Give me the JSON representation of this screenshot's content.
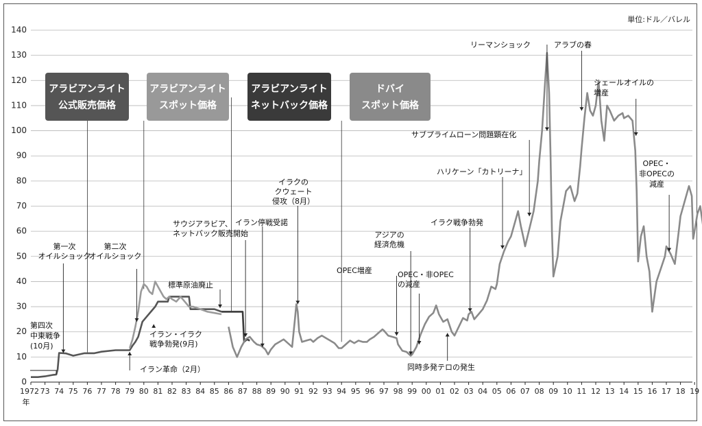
{
  "chart_data": {
    "type": "line",
    "unit_label": "単位:ドル／バレル",
    "year_unit": "年",
    "ylim": [
      0,
      140
    ],
    "yticks": [
      0,
      10,
      20,
      30,
      40,
      50,
      60,
      70,
      80,
      90,
      100,
      110,
      120,
      130,
      140
    ],
    "xlim": [
      1972,
      2019.6
    ],
    "xticks": [
      {
        "year": 1972,
        "label": "1972"
      },
      {
        "year": 1973,
        "label": "73"
      },
      {
        "year": 1974,
        "label": "74"
      },
      {
        "year": 1975,
        "label": "75"
      },
      {
        "year": 1976,
        "label": "76"
      },
      {
        "year": 1977,
        "label": "77"
      },
      {
        "year": 1978,
        "label": "78"
      },
      {
        "year": 1979,
        "label": "79"
      },
      {
        "year": 1980,
        "label": "80"
      },
      {
        "year": 1981,
        "label": "81"
      },
      {
        "year": 1982,
        "label": "82"
      },
      {
        "year": 1983,
        "label": "83"
      },
      {
        "year": 1984,
        "label": "84"
      },
      {
        "year": 1985,
        "label": "85"
      },
      {
        "year": 1986,
        "label": "86"
      },
      {
        "year": 1987,
        "label": "87"
      },
      {
        "year": 1988,
        "label": "88"
      },
      {
        "year": 1989,
        "label": "89"
      },
      {
        "year": 1990,
        "label": "90"
      },
      {
        "year": 1991,
        "label": "91"
      },
      {
        "year": 1992,
        "label": "92"
      },
      {
        "year": 1993,
        "label": "93"
      },
      {
        "year": 1994,
        "label": "94"
      },
      {
        "year": 1995,
        "label": "95"
      },
      {
        "year": 1996,
        "label": "96"
      },
      {
        "year": 1997,
        "label": "97"
      },
      {
        "year": 1998,
        "label": "98"
      },
      {
        "year": 1999,
        "label": "99"
      },
      {
        "year": 2000,
        "label": "00"
      },
      {
        "year": 2001,
        "label": "01"
      },
      {
        "year": 2002,
        "label": "02"
      },
      {
        "year": 2003,
        "label": "03"
      },
      {
        "year": 2004,
        "label": "04"
      },
      {
        "year": 2005,
        "label": "05"
      },
      {
        "year": 2006,
        "label": "06"
      },
      {
        "year": 2007,
        "label": "07"
      },
      {
        "year": 2008,
        "label": "08"
      },
      {
        "year": 2009,
        "label": "09"
      },
      {
        "year": 2010,
        "label": "10"
      },
      {
        "year": 2011,
        "label": "11"
      },
      {
        "year": 2012,
        "label": "12"
      },
      {
        "year": 2013,
        "label": "13"
      },
      {
        "year": 2014,
        "label": "14"
      },
      {
        "year": 2015,
        "label": "15"
      },
      {
        "year": 2016,
        "label": "16"
      },
      {
        "year": 2017,
        "label": "17"
      },
      {
        "year": 2018,
        "label": "18"
      },
      {
        "year": 2019,
        "label": "19"
      }
    ],
    "legend_boxes": [
      {
        "lines": [
          "アラビアンライト",
          "公式販売価格"
        ],
        "color": "#555555"
      },
      {
        "lines": [
          "アラビアンライト",
          "スポット価格"
        ],
        "color": "#999999"
      },
      {
        "lines": [
          "アラビアンライト",
          "ネットバック価格"
        ],
        "color": "#3a3a3a"
      },
      {
        "lines": [
          "ドバイ",
          "スポット価格"
        ],
        "color": "#8a8a8a"
      }
    ],
    "series": [
      {
        "color": "#555555",
        "width": 2.6,
        "points": [
          [
            1972.0,
            2.0
          ],
          [
            1972.5,
            2.0
          ],
          [
            1973.0,
            2.3
          ],
          [
            1973.6,
            2.9
          ],
          [
            1973.8,
            3.0
          ],
          [
            1973.9,
            5.1
          ],
          [
            1974.0,
            11.6
          ],
          [
            1974.5,
            11.4
          ],
          [
            1975.0,
            10.5
          ],
          [
            1975.8,
            11.5
          ],
          [
            1976.5,
            11.5
          ],
          [
            1977.0,
            12.1
          ],
          [
            1978.0,
            12.7
          ],
          [
            1979.0,
            12.7
          ],
          [
            1979.2,
            14.5
          ],
          [
            1979.4,
            16.0
          ],
          [
            1979.6,
            18.0
          ],
          [
            1979.9,
            24.0
          ],
          [
            1980.2,
            26.0
          ],
          [
            1980.5,
            28.0
          ],
          [
            1980.8,
            30.0
          ],
          [
            1981.0,
            32.0
          ],
          [
            1981.7,
            32.0
          ],
          [
            1981.8,
            34.0
          ],
          [
            1983.2,
            34.0
          ],
          [
            1983.3,
            29.0
          ],
          [
            1985.0,
            29.0
          ],
          [
            1985.5,
            28.0
          ]
        ]
      },
      {
        "color": "#9a9a9a",
        "width": 2.6,
        "points": [
          [
            1979.0,
            13.5
          ],
          [
            1979.2,
            17.0
          ],
          [
            1979.4,
            22.0
          ],
          [
            1979.6,
            28.0
          ],
          [
            1979.8,
            36.0
          ],
          [
            1980.0,
            39.0
          ],
          [
            1980.2,
            38.0
          ],
          [
            1980.4,
            36.0
          ],
          [
            1980.6,
            35.0
          ],
          [
            1980.8,
            40.0
          ],
          [
            1981.0,
            38.0
          ],
          [
            1981.2,
            36.0
          ],
          [
            1981.4,
            34.0
          ],
          [
            1981.6,
            33.0
          ],
          [
            1981.8,
            34.0
          ],
          [
            1982.0,
            33.0
          ],
          [
            1982.3,
            32.0
          ],
          [
            1982.6,
            34.0
          ],
          [
            1982.9,
            32.0
          ],
          [
            1983.2,
            30.0
          ],
          [
            1983.5,
            30.0
          ],
          [
            1984.0,
            29.0
          ],
          [
            1984.5,
            28.0
          ],
          [
            1985.0,
            27.5
          ],
          [
            1985.5,
            27.0
          ]
        ]
      },
      {
        "color": "#3a3a3a",
        "width": 2.6,
        "points": [
          [
            1985.5,
            28.0
          ],
          [
            1986.0,
            28.0
          ],
          [
            1986.4,
            28.0
          ],
          [
            1987.0,
            28.0
          ],
          [
            1987.1,
            16.0
          ],
          [
            1987.3,
            17.0
          ],
          [
            1987.5,
            16.5
          ]
        ]
      },
      {
        "color": "#8a8a8a",
        "width": 2.6,
        "points": [
          [
            1986.0,
            22.0
          ],
          [
            1986.3,
            14.0
          ],
          [
            1986.6,
            10.0
          ],
          [
            1986.9,
            14.0
          ],
          [
            1987.2,
            17.0
          ],
          [
            1987.5,
            18.0
          ],
          [
            1987.8,
            16.0
          ],
          [
            1988.0,
            15.0
          ],
          [
            1988.3,
            14.5
          ],
          [
            1988.6,
            13.0
          ],
          [
            1988.8,
            11.0
          ],
          [
            1989.0,
            13.0
          ],
          [
            1989.3,
            15.0
          ],
          [
            1989.6,
            16.0
          ],
          [
            1989.9,
            17.0
          ],
          [
            1990.2,
            15.5
          ],
          [
            1990.5,
            14.0
          ],
          [
            1990.7,
            25.0
          ],
          [
            1990.8,
            31.0
          ],
          [
            1990.9,
            28.0
          ],
          [
            1991.0,
            20.0
          ],
          [
            1991.2,
            16.0
          ],
          [
            1991.5,
            16.5
          ],
          [
            1991.8,
            17.0
          ],
          [
            1992.0,
            16.0
          ],
          [
            1992.3,
            17.5
          ],
          [
            1992.6,
            18.5
          ],
          [
            1992.9,
            17.5
          ],
          [
            1993.2,
            16.5
          ],
          [
            1993.5,
            15.5
          ],
          [
            1993.8,
            13.5
          ],
          [
            1994.0,
            13.5
          ],
          [
            1994.3,
            15.0
          ],
          [
            1994.6,
            16.5
          ],
          [
            1994.9,
            15.5
          ],
          [
            1995.2,
            16.5
          ],
          [
            1995.5,
            16.0
          ],
          [
            1995.8,
            16.0
          ],
          [
            1996.0,
            17.0
          ],
          [
            1996.3,
            18.0
          ],
          [
            1996.6,
            19.5
          ],
          [
            1996.9,
            21.0
          ],
          [
            1997.0,
            20.5
          ],
          [
            1997.3,
            18.5
          ],
          [
            1997.6,
            18.0
          ],
          [
            1997.9,
            17.5
          ],
          [
            1998.0,
            15.0
          ],
          [
            1998.3,
            12.5
          ],
          [
            1998.6,
            12.0
          ],
          [
            1998.9,
            10.5
          ],
          [
            1999.0,
            11.0
          ],
          [
            1999.3,
            14.0
          ],
          [
            1999.6,
            19.0
          ],
          [
            1999.9,
            23.0
          ],
          [
            2000.2,
            26.0
          ],
          [
            2000.5,
            27.5
          ],
          [
            2000.7,
            30.5
          ],
          [
            2000.9,
            27.0
          ],
          [
            2001.2,
            24.0
          ],
          [
            2001.5,
            25.0
          ],
          [
            2001.8,
            20.0
          ],
          [
            2002.0,
            18.5
          ],
          [
            2002.3,
            22.0
          ],
          [
            2002.6,
            25.5
          ],
          [
            2002.9,
            24.5
          ],
          [
            2003.0,
            27.0
          ],
          [
            2003.2,
            28.0
          ],
          [
            2003.4,
            25.0
          ],
          [
            2003.7,
            27.0
          ],
          [
            2004.0,
            29.0
          ],
          [
            2004.3,
            32.5
          ],
          [
            2004.6,
            38.0
          ],
          [
            2004.9,
            37.0
          ],
          [
            2005.0,
            39.0
          ],
          [
            2005.2,
            47.0
          ],
          [
            2005.5,
            52.0
          ],
          [
            2005.8,
            56.0
          ],
          [
            2006.0,
            58.0
          ],
          [
            2006.3,
            64.0
          ],
          [
            2006.5,
            68.0
          ],
          [
            2006.7,
            62.0
          ],
          [
            2006.9,
            57.0
          ],
          [
            2007.0,
            54.0
          ],
          [
            2007.3,
            61.0
          ],
          [
            2007.6,
            68.0
          ],
          [
            2007.9,
            80.0
          ],
          [
            2008.0,
            88.0
          ],
          [
            2008.2,
            100.0
          ],
          [
            2008.4,
            118.0
          ],
          [
            2008.55,
            131.0
          ],
          [
            2008.7,
            115.0
          ],
          [
            2008.8,
            90.0
          ],
          [
            2008.9,
            60.0
          ],
          [
            2009.0,
            42.0
          ],
          [
            2009.3,
            50.0
          ],
          [
            2009.5,
            64.0
          ],
          [
            2009.7,
            70.0
          ],
          [
            2009.9,
            76.0
          ],
          [
            2010.2,
            78.0
          ],
          [
            2010.5,
            72.0
          ],
          [
            2010.7,
            75.0
          ],
          [
            2010.9,
            86.0
          ],
          [
            2011.0,
            93.0
          ],
          [
            2011.2,
            105.0
          ],
          [
            2011.4,
            115.0
          ],
          [
            2011.6,
            108.0
          ],
          [
            2011.8,
            106.0
          ],
          [
            2012.0,
            110.0
          ],
          [
            2012.2,
            120.0
          ],
          [
            2012.4,
            104.0
          ],
          [
            2012.6,
            96.0
          ],
          [
            2012.8,
            110.0
          ],
          [
            2013.0,
            108.0
          ],
          [
            2013.3,
            104.0
          ],
          [
            2013.6,
            106.0
          ],
          [
            2013.9,
            107.0
          ],
          [
            2014.0,
            105.0
          ],
          [
            2014.3,
            106.0
          ],
          [
            2014.6,
            104.0
          ],
          [
            2014.8,
            92.0
          ],
          [
            2014.9,
            76.0
          ],
          [
            2015.0,
            48.0
          ],
          [
            2015.2,
            58.0
          ],
          [
            2015.4,
            62.0
          ],
          [
            2015.6,
            50.0
          ],
          [
            2015.8,
            44.0
          ],
          [
            2016.0,
            28.0
          ],
          [
            2016.3,
            40.0
          ],
          [
            2016.6,
            45.0
          ],
          [
            2016.9,
            50.0
          ],
          [
            2017.0,
            54.0
          ],
          [
            2017.3,
            51.0
          ],
          [
            2017.6,
            47.0
          ],
          [
            2017.9,
            61.0
          ],
          [
            2018.0,
            66.0
          ],
          [
            2018.3,
            72.0
          ],
          [
            2018.6,
            78.0
          ],
          [
            2018.8,
            74.0
          ],
          [
            2018.9,
            57.0
          ],
          [
            2019.0,
            60.0
          ],
          [
            2019.2,
            67.0
          ],
          [
            2019.4,
            70.0
          ],
          [
            2019.6,
            62.0
          ]
        ]
      }
    ],
    "annotations": [
      {
        "lines": [
          "第四次",
          "中東戦争",
          "(10月)"
        ]
      },
      {
        "lines": [
          "第一次",
          "オイルショック"
        ]
      },
      {
        "lines": [
          "第二次",
          "オイルショック"
        ]
      },
      {
        "lines": [
          "イラン・イラク",
          "戦争勃発(9月)"
        ]
      },
      {
        "lines": [
          "イラン革命（2月）"
        ]
      },
      {
        "lines": [
          "標準原油廃止"
        ]
      },
      {
        "lines": [
          "サウジアラビア、",
          "ネットバック販売開始"
        ]
      },
      {
        "lines": [
          "イラン停戦受諾"
        ]
      },
      {
        "lines": [
          "イラクの",
          "クウェート",
          "侵攻（8月）"
        ]
      },
      {
        "lines": [
          "OPEC増産"
        ]
      },
      {
        "lines": [
          "アジアの",
          "経済危機"
        ]
      },
      {
        "lines": [
          "OPEC・非OPEC",
          "の減産"
        ]
      },
      {
        "lines": [
          "同時多発テロの発生"
        ]
      },
      {
        "lines": [
          "イラク戦争勃発"
        ]
      },
      {
        "lines": [
          "ハリケーン「カトリーナ」"
        ]
      },
      {
        "lines": [
          "サブプライムローン問題顕在化"
        ]
      },
      {
        "lines": [
          "リーマンショック"
        ]
      },
      {
        "lines": [
          "アラブの春"
        ]
      },
      {
        "lines": [
          "シェールオイルの",
          "増産"
        ]
      },
      {
        "lines": [
          "OPEC・",
          "非OPECの",
          "減産"
        ]
      }
    ]
  }
}
